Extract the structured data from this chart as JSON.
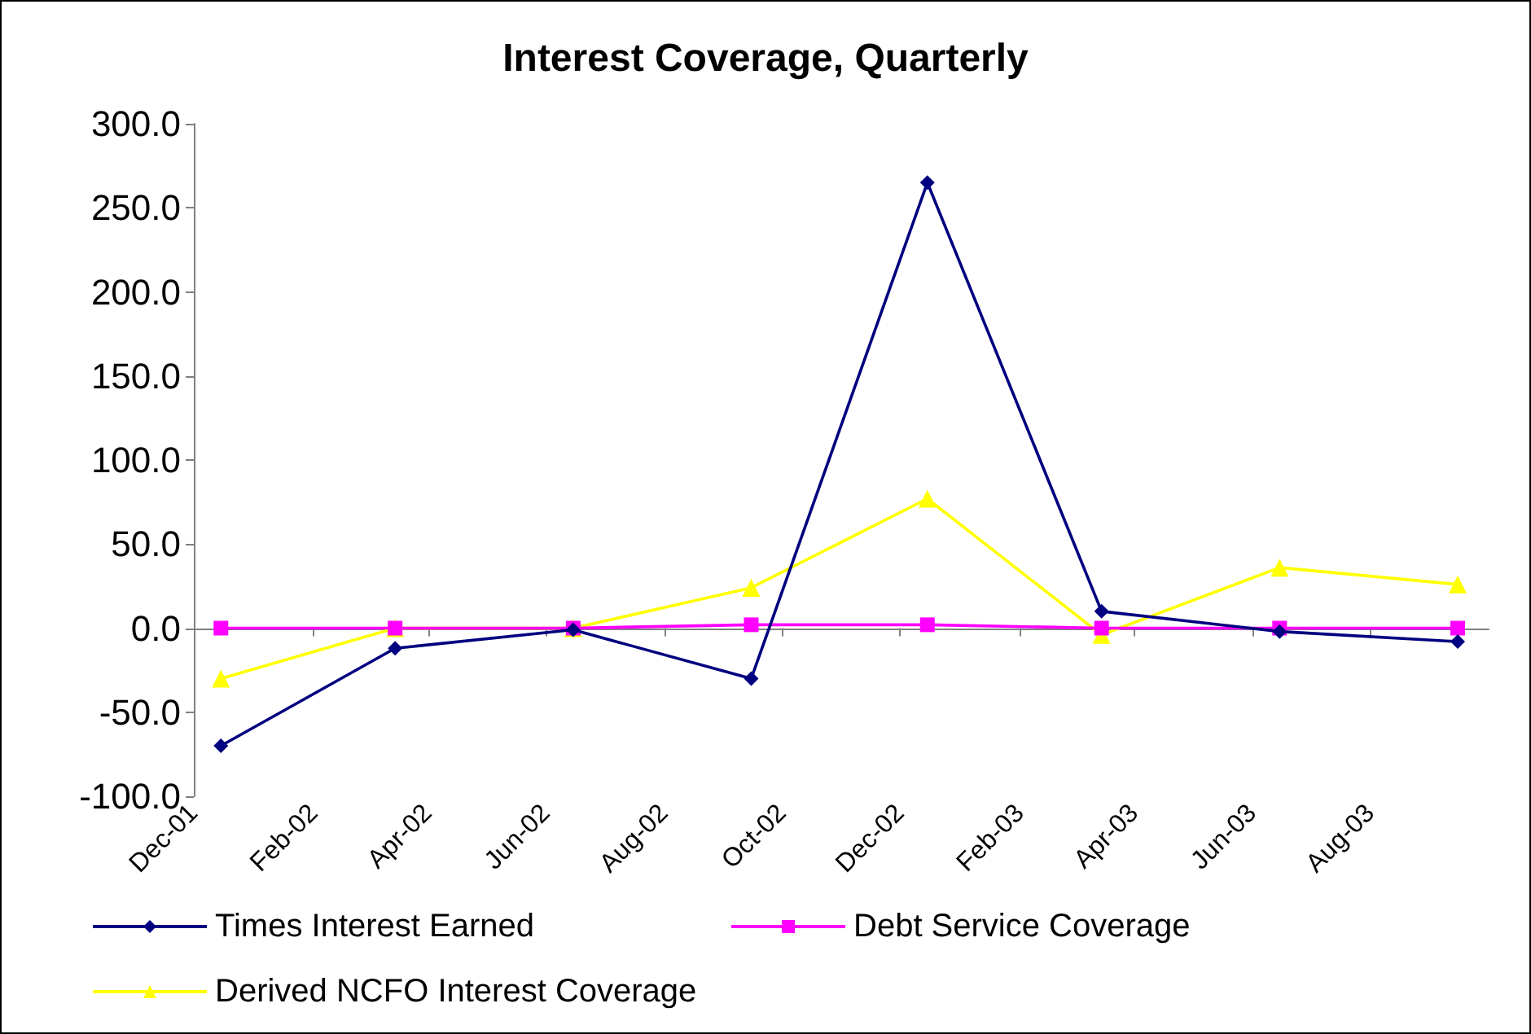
{
  "chart_data": {
    "type": "line",
    "title": "Interest Coverage, Quarterly",
    "x": [
      "2001-12-15",
      "2002-03-15",
      "2002-06-15",
      "2002-09-15",
      "2002-12-15",
      "2003-03-15",
      "2003-06-15",
      "2003-09-15"
    ],
    "series": [
      {
        "name": "Times Interest Earned",
        "color": "#000080",
        "marker": "diamond",
        "values": [
          -70,
          -12,
          -1,
          -30,
          265,
          10,
          -2,
          -8
        ]
      },
      {
        "name": "Debt Service Coverage",
        "color": "#ff00ff",
        "marker": "square",
        "values": [
          0,
          0,
          0,
          2,
          2,
          0,
          0,
          0
        ]
      },
      {
        "name": "Derived NCFO Interest Coverage",
        "color": "#ffff00",
        "marker": "triangle",
        "values": [
          -30,
          0,
          0,
          24,
          77,
          -4,
          36,
          26
        ]
      }
    ],
    "xlim": [
      "2001-12-01",
      "2003-10-01"
    ],
    "xticks": [
      {
        "value": "2001-12-01",
        "label": "Dec-01"
      },
      {
        "value": "2002-02-01",
        "label": "Feb-02"
      },
      {
        "value": "2002-04-01",
        "label": "Apr-02"
      },
      {
        "value": "2002-06-01",
        "label": "Jun-02"
      },
      {
        "value": "2002-08-01",
        "label": "Aug-02"
      },
      {
        "value": "2002-10-01",
        "label": "Oct-02"
      },
      {
        "value": "2002-12-01",
        "label": "Dec-02"
      },
      {
        "value": "2003-02-01",
        "label": "Feb-03"
      },
      {
        "value": "2003-04-01",
        "label": "Apr-03"
      },
      {
        "value": "2003-06-01",
        "label": "Jun-03"
      },
      {
        "value": "2003-08-01",
        "label": "Aug-03"
      }
    ],
    "ylim": [
      -100,
      300
    ],
    "yticks": [
      {
        "value": -100,
        "label": "-100.0"
      },
      {
        "value": -50,
        "label": "-50.0"
      },
      {
        "value": 0,
        "label": "0.0"
      },
      {
        "value": 50,
        "label": "50.0"
      },
      {
        "value": 100,
        "label": "100.0"
      },
      {
        "value": 150,
        "label": "150.0"
      },
      {
        "value": 200,
        "label": "200.0"
      },
      {
        "value": 250,
        "label": "250.0"
      },
      {
        "value": 300,
        "label": "300.0"
      }
    ],
    "legend": "bottom"
  }
}
